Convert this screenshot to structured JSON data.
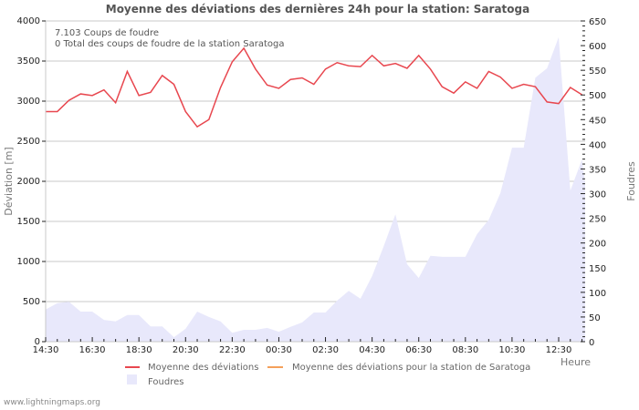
{
  "title": "Moyenne des déviations des dernières 24h pour la station: Saratoga",
  "info": {
    "line1": "7.103  Coups de foudre",
    "line2": "0 Total des coups de foudre de la station Saratoga"
  },
  "axes": {
    "left_label": "Déviation  [m]",
    "right_label": "Foudres",
    "x_label": "Heure",
    "left_ticks": [
      "0",
      "500",
      "1000",
      "1500",
      "2000",
      "2500",
      "3000",
      "3500",
      "4000"
    ],
    "right_ticks": [
      "0",
      "50",
      "100",
      "150",
      "200",
      "250",
      "300",
      "350",
      "400",
      "450",
      "500",
      "550",
      "600",
      "650"
    ],
    "x_ticks": [
      "14:30",
      "16:30",
      "18:30",
      "20:30",
      "22:30",
      "00:30",
      "02:30",
      "04:30",
      "06:30",
      "08:30",
      "10:30",
      "12:30"
    ]
  },
  "legend": {
    "item1": "Moyenne des déviations",
    "item2": "Moyenne des déviations pour la station de Saratoga",
    "item3": "Foudres"
  },
  "footer": "www.lightningmaps.org",
  "colors": {
    "deviation_line": "#e8474f",
    "station_line": "#f5a05a",
    "foudres_area": "#e8e8fb",
    "grid": "#c8c8c8"
  },
  "chart_data": {
    "type": "line",
    "title": "Moyenne des déviations des dernières 24h pour la station: Saratoga",
    "xlabel": "Heure",
    "ylabel": "Déviation  [m]",
    "y2label": "Foudres",
    "ylim": [
      0,
      4000
    ],
    "y2lim": [
      0,
      650
    ],
    "grid": true,
    "legend_position": "bottom",
    "x": [
      "14:30",
      "15:00",
      "15:30",
      "16:00",
      "16:30",
      "17:00",
      "17:30",
      "18:00",
      "18:30",
      "19:00",
      "19:30",
      "20:00",
      "20:30",
      "21:00",
      "21:30",
      "22:00",
      "22:30",
      "23:00",
      "23:30",
      "00:00",
      "00:30",
      "01:00",
      "01:30",
      "02:00",
      "02:30",
      "03:00",
      "03:30",
      "04:00",
      "04:30",
      "05:00",
      "05:30",
      "06:00",
      "06:30",
      "07:00",
      "07:30",
      "08:00",
      "08:30",
      "09:00",
      "09:30",
      "10:00",
      "10:30",
      "11:00",
      "11:30",
      "12:00",
      "12:30",
      "13:00",
      "13:30"
    ],
    "series": [
      {
        "name": "Moyenne des déviations",
        "axis": "left",
        "type": "line",
        "values": [
          2870,
          2870,
          3010,
          3090,
          3070,
          3140,
          2980,
          3370,
          3070,
          3110,
          3320,
          3210,
          2870,
          2680,
          2770,
          3170,
          3490,
          3660,
          3400,
          3200,
          3160,
          3270,
          3290,
          3210,
          3400,
          3480,
          3440,
          3430,
          3570,
          3440,
          3470,
          3410,
          3570,
          3400,
          3180,
          3100,
          3240,
          3160,
          3370,
          3300,
          3160,
          3210,
          3180,
          2990,
          2970,
          3170,
          3080
        ]
      },
      {
        "name": "Moyenne des déviations pour la station de Saratoga",
        "axis": "left",
        "type": "line",
        "values": []
      },
      {
        "name": "Foudres",
        "axis": "right",
        "type": "area",
        "values": [
          65,
          78,
          81,
          61,
          61,
          44,
          41,
          54,
          54,
          31,
          31,
          9,
          26,
          61,
          50,
          41,
          18,
          24,
          24,
          28,
          20,
          30,
          39,
          59,
          59,
          83,
          103,
          87,
          133,
          194,
          258,
          157,
          129,
          174,
          172,
          172,
          172,
          218,
          247,
          301,
          393,
          393,
          535,
          554,
          617,
          306,
          369
        ]
      }
    ]
  }
}
